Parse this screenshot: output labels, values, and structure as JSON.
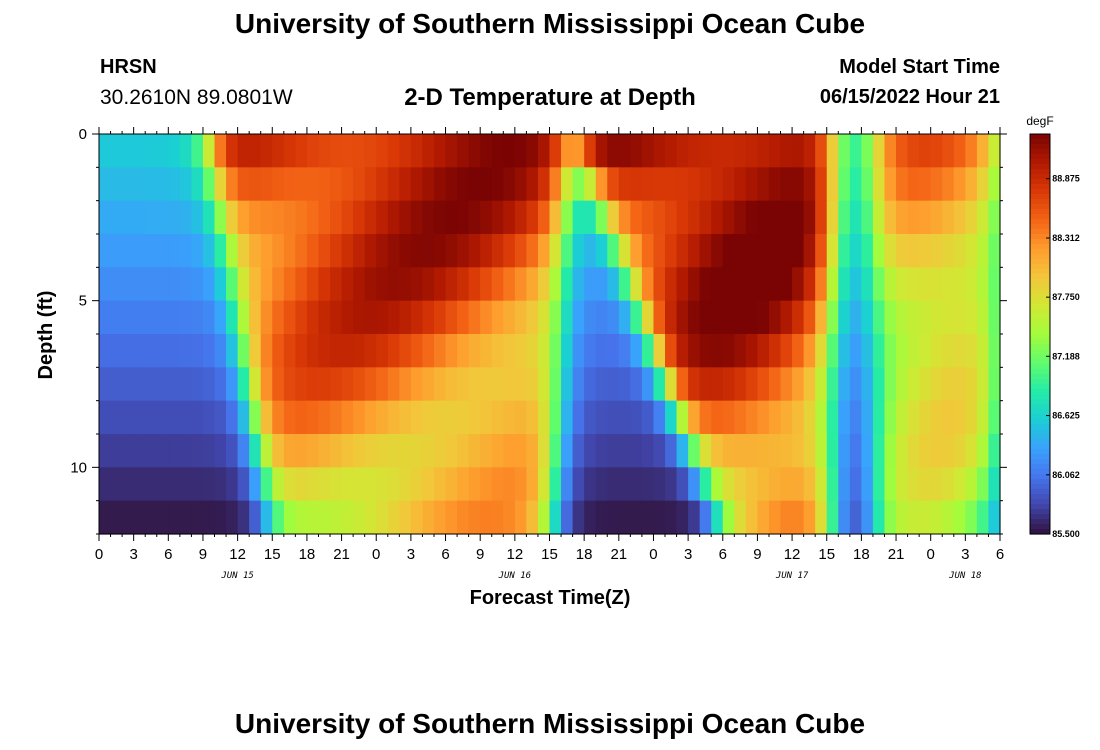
{
  "header": {
    "title": "University of Southern Mississippi Ocean Cube",
    "station": "HRSN",
    "coords": "30.2610N  89.0801W",
    "subtitle": "2-D Temperature at Depth",
    "start_label": "Model Start Time",
    "start_value": "06/15/2022 Hour 21"
  },
  "footer": {
    "title": "University of Southern Mississippi Ocean Cube"
  },
  "colors": {
    "background": "#ffffff",
    "axis": "#000000"
  },
  "chart_data": {
    "type": "heatmap",
    "title": "2-D Temperature at Depth",
    "xlabel": "Forecast Time(Z)",
    "ylabel": "Depth (ft)",
    "x_range_hours": [
      0,
      78
    ],
    "y_range_ft": [
      0,
      12
    ],
    "y_inverted": true,
    "x_ticks": [
      "0",
      "3",
      "6",
      "9",
      "12",
      "15",
      "18",
      "21",
      "0",
      "3",
      "6",
      "9",
      "12",
      "15",
      "18",
      "21",
      "0",
      "3",
      "6",
      "9",
      "12",
      "15",
      "18",
      "21",
      "0",
      "3",
      "6"
    ],
    "y_ticks": [
      0,
      5,
      10
    ],
    "date_labels": [
      {
        "text": "JUN 15",
        "hour": 12
      },
      {
        "text": "JUN 16",
        "hour": 36
      },
      {
        "text": "JUN 17",
        "hour": 60
      },
      {
        "text": "JUN 18",
        "hour": 75
      }
    ],
    "colorbar": {
      "unit": "degF",
      "min": 85.5,
      "max": 89.3,
      "ticks": [
        "85.500",
        "86.062",
        "86.625",
        "87.188",
        "87.750",
        "88.312",
        "88.875"
      ],
      "colormap": [
        "#30123b",
        "#4145ab",
        "#4675ed",
        "#39a2fc",
        "#1bcfd4",
        "#24eca6",
        "#61fc6c",
        "#a4fc3b",
        "#d1e834",
        "#f3c63a",
        "#fe9b2d",
        "#f36315",
        "#d93806",
        "#b11901",
        "#7a0403"
      ]
    },
    "grid_depths_ft": [
      0,
      1,
      2,
      3,
      4,
      5,
      6,
      7,
      8,
      9,
      10,
      11
    ],
    "grid_hours": [
      0,
      1,
      2,
      3,
      4,
      5,
      6,
      7,
      8,
      9,
      10,
      11,
      12,
      13,
      14,
      15,
      16,
      17,
      18,
      19,
      20,
      21,
      22,
      23,
      24,
      25,
      26,
      27,
      28,
      29,
      30,
      31,
      32,
      33,
      34,
      35,
      36,
      37,
      38,
      39,
      40,
      41,
      42,
      43,
      44,
      45,
      46,
      47,
      48,
      49,
      50,
      51,
      52,
      53,
      54,
      55,
      56,
      57,
      58,
      59,
      60,
      61,
      62,
      63,
      64,
      65,
      66,
      67,
      68,
      69,
      70,
      71,
      72,
      73,
      74,
      75,
      76,
      77
    ],
    "warm_bands": [
      {
        "start_top": 9.5,
        "end_top": 40.5,
        "start_slope": 0.45,
        "end_slope": -0.1,
        "amplitude": 2.6
      },
      {
        "start_top": 41.2,
        "end_top": 63.5,
        "start_slope": 1.05,
        "end_slope": 0.0,
        "amplitude": 2.9
      },
      {
        "start_top": 67.0,
        "end_top": 78.0,
        "start_slope": 0.0,
        "end_slope": 0.0,
        "amplitude": 1.9
      }
    ],
    "base_temp_surface": 86.6,
    "base_temp_bottom": 85.5
  }
}
